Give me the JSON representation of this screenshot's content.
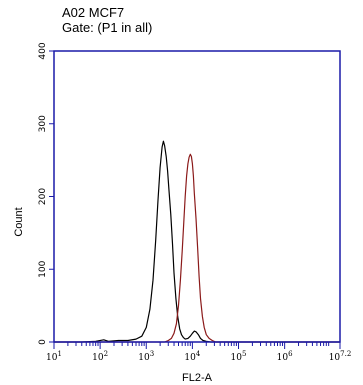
{
  "chart_data": {
    "type": "line",
    "title": "A02 MCF7",
    "subtitle": "Gate: (P1 in all)",
    "xlabel": "FL2-A",
    "ylabel": "Count",
    "x_scale": "log",
    "xlim": [
      10,
      15848932
    ],
    "ylim": [
      0,
      400
    ],
    "y_ticks": [
      0,
      100,
      200,
      300,
      400
    ],
    "x_ticks": [
      {
        "base": "10",
        "exp": "1",
        "value": 10
      },
      {
        "base": "10",
        "exp": "2",
        "value": 100
      },
      {
        "base": "10",
        "exp": "3",
        "value": 1000
      },
      {
        "base": "10",
        "exp": "4",
        "value": 10000
      },
      {
        "base": "10",
        "exp": "5",
        "value": 100000
      },
      {
        "base": "10",
        "exp": "6",
        "value": 1000000
      },
      {
        "base": "10",
        "exp": "7.2",
        "value": 15848932
      }
    ],
    "grid": false,
    "colors": {
      "axis": "#1a1aa8",
      "series_1": "#000000",
      "series_2": "#8b1a1a"
    },
    "series": [
      {
        "color": "#000000",
        "points": [
          [
            10,
            0
          ],
          [
            40,
            0
          ],
          [
            80,
            1
          ],
          [
            120,
            3
          ],
          [
            150,
            1
          ],
          [
            250,
            2
          ],
          [
            400,
            2
          ],
          [
            600,
            4
          ],
          [
            800,
            8
          ],
          [
            1000,
            20
          ],
          [
            1200,
            45
          ],
          [
            1400,
            85
          ],
          [
            1600,
            140
          ],
          [
            1800,
            195
          ],
          [
            2000,
            240
          ],
          [
            2200,
            268
          ],
          [
            2350,
            276
          ],
          [
            2500,
            270
          ],
          [
            2700,
            255
          ],
          [
            2900,
            235
          ],
          [
            3100,
            210
          ],
          [
            3400,
            175
          ],
          [
            3700,
            135
          ],
          [
            4000,
            95
          ],
          [
            4400,
            60
          ],
          [
            4800,
            35
          ],
          [
            5300,
            18
          ],
          [
            5800,
            10
          ],
          [
            6400,
            6
          ],
          [
            7000,
            4
          ],
          [
            8000,
            5
          ],
          [
            9000,
            8
          ],
          [
            10000,
            12
          ],
          [
            11000,
            15
          ],
          [
            12000,
            14
          ],
          [
            13500,
            10
          ],
          [
            15000,
            5
          ],
          [
            17000,
            2
          ],
          [
            20000,
            1
          ],
          [
            25000,
            0
          ],
          [
            15848932,
            0
          ]
        ]
      },
      {
        "color": "#8b1a1a",
        "points": [
          [
            10,
            0
          ],
          [
            2500,
            0
          ],
          [
            3000,
            2
          ],
          [
            3500,
            5
          ],
          [
            4000,
            12
          ],
          [
            4500,
            25
          ],
          [
            5000,
            50
          ],
          [
            5500,
            85
          ],
          [
            6000,
            125
          ],
          [
            6500,
            165
          ],
          [
            7000,
            200
          ],
          [
            7500,
            228
          ],
          [
            8000,
            245
          ],
          [
            8500,
            254
          ],
          [
            9000,
            258
          ],
          [
            9500,
            255
          ],
          [
            10000,
            245
          ],
          [
            10500,
            228
          ],
          [
            11000,
            205
          ],
          [
            12000,
            170
          ],
          [
            13000,
            130
          ],
          [
            14000,
            90
          ],
          [
            15000,
            60
          ],
          [
            16500,
            35
          ],
          [
            18000,
            20
          ],
          [
            20000,
            10
          ],
          [
            23000,
            5
          ],
          [
            27000,
            2
          ],
          [
            32000,
            0
          ],
          [
            15848932,
            0
          ]
        ]
      }
    ]
  }
}
